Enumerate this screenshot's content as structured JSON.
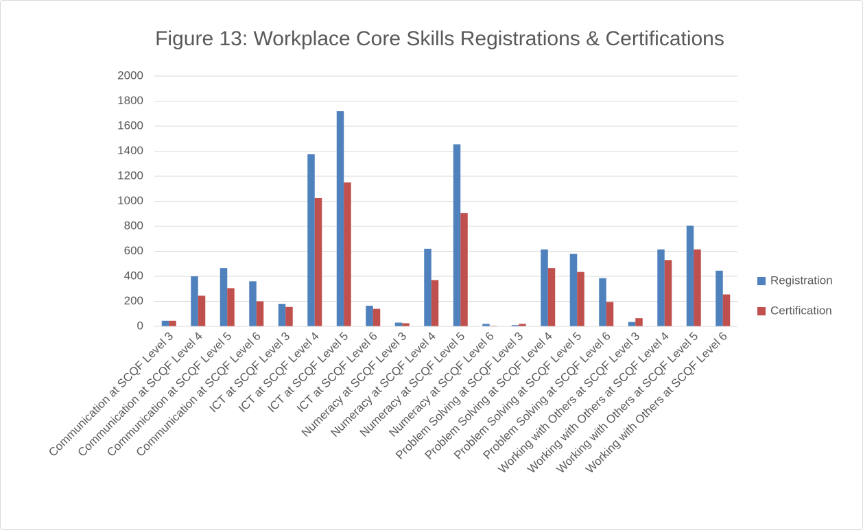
{
  "chart_data": {
    "type": "bar",
    "title": "Figure 13: Workplace Core Skills Registrations & Certifications",
    "categories": [
      "Communication at SCQF Level 3",
      "Communication at SCQF Level 4",
      "Communication at SCQF Level 5",
      "Communication at SCQF Level 6",
      "ICT at SCQF Level 3",
      "ICT at SCQF Level 4",
      "ICT at SCQF Level 5",
      "ICT at SCQF Level 6",
      "Numeracy at SCQF Level 3",
      "Numeracy at SCQF Level 4",
      "Numeracy at SCQF Level 5",
      "Numeracy at SCQF Level 6",
      "Problem Solving at SCQF Level 3",
      "Problem Solving at SCQF Level 4",
      "Problem Solving at SCQF Level 5",
      "Problem Solving at SCQF Level 6",
      "Working with Others at SCQF Level 3",
      "Working with Others at SCQF Level 4",
      "Working with Others at SCQF Level 5",
      "Working with Others at SCQF Level 6"
    ],
    "series": [
      {
        "name": "Registration",
        "color": "#4f81bd",
        "values": [
          45,
          400,
          465,
          360,
          180,
          1375,
          1720,
          165,
          30,
          620,
          1455,
          20,
          10,
          615,
          580,
          385,
          35,
          615,
          805,
          445
        ]
      },
      {
        "name": "Certification",
        "color": "#c0504d",
        "values": [
          45,
          245,
          305,
          200,
          155,
          1025,
          1150,
          140,
          25,
          370,
          905,
          5,
          20,
          465,
          435,
          195,
          65,
          530,
          615,
          255
        ]
      }
    ],
    "ylim": [
      0,
      2000
    ],
    "yticks": [
      0,
      200,
      400,
      600,
      800,
      1000,
      1200,
      1400,
      1600,
      1800,
      2000
    ],
    "grid": true,
    "legend": "right"
  }
}
